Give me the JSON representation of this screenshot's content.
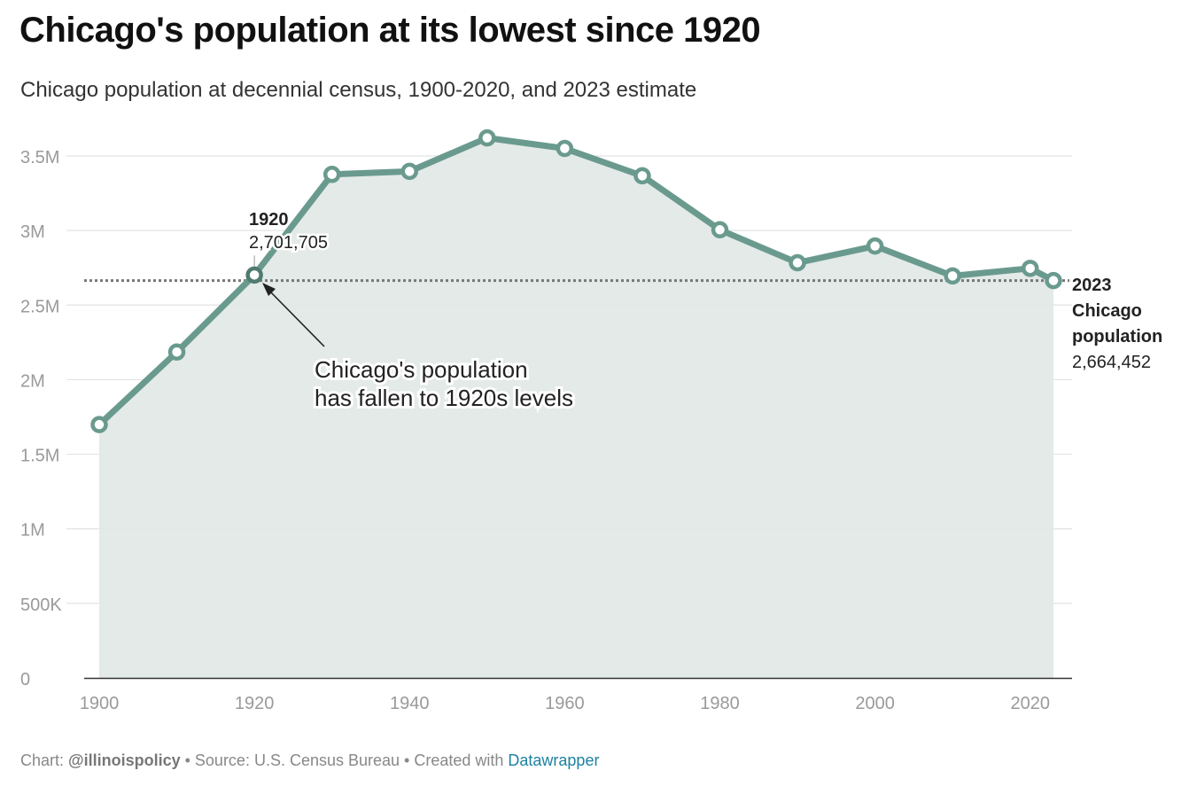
{
  "header": {
    "title": "Chicago's population at its lowest since 1920",
    "subtitle": "Chicago population at decennial census, 1900-2020, and 2023 estimate"
  },
  "footer": {
    "chart_label": "Chart: ",
    "chart_credit": "@illinoispolicy",
    "source_text": " • Source: U.S. Census Bureau • Created with ",
    "tool_name": "Datawrapper"
  },
  "colors": {
    "line": "#6a9a8e",
    "area": "#e1e9e6",
    "grid": "#e3e3e3",
    "axis": "#333333",
    "tick_label": "#9a9a9a",
    "reference_line": "#777777",
    "link": "#1d81a2"
  },
  "chart_data": {
    "type": "area",
    "x": [
      1900,
      1910,
      1920,
      1930,
      1940,
      1950,
      1960,
      1970,
      1980,
      1990,
      2000,
      2010,
      2020,
      2023
    ],
    "series": [
      {
        "values": [
          1698575,
          2185283,
          2701705,
          3376438,
          3396808,
          3620962,
          3550404,
          3366957,
          3005072,
          2783726,
          2896016,
          2695598,
          2746388,
          2664452
        ]
      }
    ],
    "xlim": [
      1900,
      2023
    ],
    "ylim": [
      0,
      3500000
    ],
    "x_ticks": [
      1900,
      1920,
      1940,
      1960,
      1980,
      2000,
      2020
    ],
    "x_tick_labels": [
      "1900",
      "1920",
      "1940",
      "1960",
      "1980",
      "2000",
      "2020"
    ],
    "y_ticks": [
      0,
      500000,
      1000000,
      1500000,
      2000000,
      2500000,
      3000000,
      3500000
    ],
    "y_tick_labels": [
      "0",
      "500K",
      "1M",
      "1.5M",
      "2M",
      "2.5M",
      "3M",
      "3.5M"
    ],
    "grid": true,
    "legend": "none",
    "reference_line": {
      "value": 2664452,
      "style": "dotted",
      "label_lines": [
        "2023",
        "Chicago",
        "population"
      ],
      "label_value": "2,664,452"
    },
    "annotations": [
      {
        "x": 1920,
        "label_year": "1920",
        "label_value": "2,701,705"
      },
      {
        "x": 1920,
        "lines": [
          "Chicago's population",
          "has fallen to 1920s levels"
        ]
      }
    ]
  }
}
